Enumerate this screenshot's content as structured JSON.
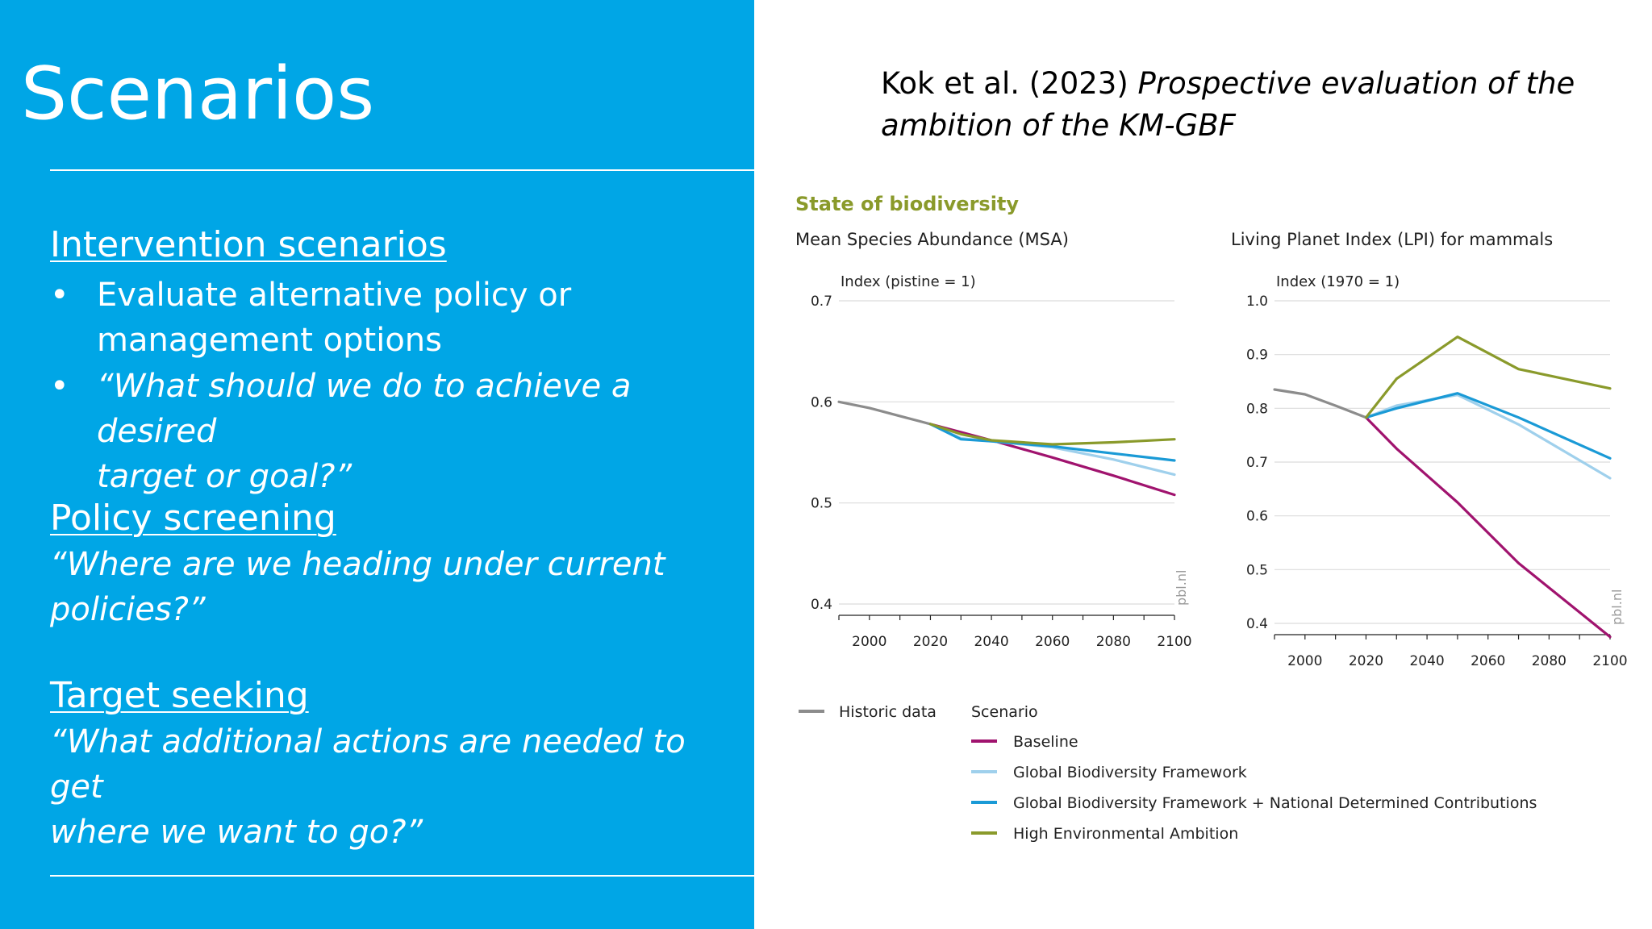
{
  "slide": {
    "title": "Scenarios",
    "sections": [
      {
        "heading": "Intervention scenarios ",
        "bullets": [
          {
            "symbol": "•",
            "lines": [
              "Evaluate alternative policy or",
              "management options"
            ]
          },
          {
            "symbol": "•",
            "lines": [
              "“What should we do to achieve a desired",
              "target or goal?”"
            ]
          }
        ]
      },
      {
        "heading": "Policy screening",
        "lines": [
          "“Where are we heading under current",
          "policies?”"
        ]
      },
      {
        "heading": "Target seeking",
        "lines": [
          "“What additional actions are needed to get",
          "where we want to go?”"
        ]
      }
    ],
    "reference": {
      "authors": "Kok et al. (2023) ",
      "title_part1": "Prospective evaluation of the",
      "title_part2": "ambition of the KM-GBF"
    }
  },
  "colors": {
    "panel": "#00a6e6",
    "historic": "#8c8c8c",
    "baseline": "#a0136e",
    "gbf": "#9fd0ec",
    "gbf_ndc": "#1a9ad6",
    "hea": "#8a9a2b",
    "heading": "#8a9a2b"
  },
  "figure": {
    "heading": "State of biodiversity",
    "watermark": "pbl.nl",
    "legend": {
      "historic": "Historic data",
      "scenario_title": "Scenario",
      "items": [
        {
          "key": "baseline",
          "label": "Baseline"
        },
        {
          "key": "gbf",
          "label": "Global Biodiversity Framework"
        },
        {
          "key": "gbf_ndc",
          "label": "Global Biodiversity Framework + National Determined Contributions"
        },
        {
          "key": "hea",
          "label": "High Environmental Ambition"
        }
      ]
    }
  },
  "chart_data": [
    {
      "type": "line",
      "title": "Mean Species Abundance (MSA)",
      "ylabel": "Index (pistine = 1)",
      "xlim": [
        1990,
        2100
      ],
      "ylim": [
        0.4,
        0.7
      ],
      "xticks": [
        2000,
        2020,
        2040,
        2060,
        2080,
        2100
      ],
      "yticks": [
        {
          "value": 0.4,
          "label": "0.4"
        },
        {
          "value": 0.5,
          "label": "0.5"
        },
        {
          "value": 0.6,
          "label": "0.6"
        },
        {
          "value": 0.7,
          "label": "0.7"
        }
      ],
      "grid": true,
      "series": [
        {
          "key": "historic",
          "name": "Historic data",
          "points": [
            [
              1990,
              0.6
            ],
            [
              2000,
              0.594
            ],
            [
              2010,
              0.586
            ],
            [
              2020,
              0.578
            ]
          ]
        },
        {
          "key": "baseline",
          "name": "Baseline",
          "points": [
            [
              2020,
              0.578
            ],
            [
              2030,
              0.57
            ],
            [
              2040,
              0.562
            ],
            [
              2060,
              0.545
            ],
            [
              2080,
              0.527
            ],
            [
              2100,
              0.508
            ]
          ]
        },
        {
          "key": "gbf",
          "name": "Global Biodiversity Framework",
          "points": [
            [
              2020,
              0.578
            ],
            [
              2030,
              0.564
            ],
            [
              2040,
              0.561
            ],
            [
              2060,
              0.555
            ],
            [
              2080,
              0.543
            ],
            [
              2100,
              0.528
            ]
          ]
        },
        {
          "key": "gbf_ndc",
          "name": "Global Biodiversity Framework + National Determined Contributions",
          "points": [
            [
              2020,
              0.578
            ],
            [
              2030,
              0.563
            ],
            [
              2040,
              0.561
            ],
            [
              2060,
              0.556
            ],
            [
              2080,
              0.549
            ],
            [
              2100,
              0.542
            ]
          ]
        },
        {
          "key": "hea",
          "name": "High Environmental Ambition",
          "points": [
            [
              2020,
              0.578
            ],
            [
              2030,
              0.568
            ],
            [
              2040,
              0.562
            ],
            [
              2060,
              0.558
            ],
            [
              2080,
              0.56
            ],
            [
              2100,
              0.563
            ]
          ]
        }
      ]
    },
    {
      "type": "line",
      "title": "Living Planet Index (LPI) for mammals",
      "ylabel": "Index (1970 = 1)",
      "xlim": [
        1990,
        2100
      ],
      "ylim": [
        0.4,
        1.0
      ],
      "xticks": [
        2000,
        2020,
        2040,
        2060,
        2080,
        2100
      ],
      "yticks": [
        {
          "value": 0.4,
          "label": "0.4"
        },
        {
          "value": 0.5,
          "label": "0.5"
        },
        {
          "value": 0.6,
          "label": "0.6"
        },
        {
          "value": 0.7,
          "label": "0.7"
        },
        {
          "value": 0.8,
          "label": "0.8"
        },
        {
          "value": 0.9,
          "label": "0.9"
        },
        {
          "value": 1.0,
          "label": "1.0"
        }
      ],
      "grid": true,
      "series": [
        {
          "key": "historic",
          "name": "Historic data",
          "points": [
            [
              1990,
              0.835
            ],
            [
              2000,
              0.826
            ],
            [
              2010,
              0.805
            ],
            [
              2020,
              0.783
            ]
          ]
        },
        {
          "key": "baseline",
          "name": "Baseline",
          "points": [
            [
              2020,
              0.783
            ],
            [
              2030,
              0.725
            ],
            [
              2050,
              0.625
            ],
            [
              2070,
              0.512
            ],
            [
              2100,
              0.375
            ]
          ]
        },
        {
          "key": "gbf",
          "name": "Global Biodiversity Framework",
          "points": [
            [
              2020,
              0.783
            ],
            [
              2030,
              0.805
            ],
            [
              2050,
              0.825
            ],
            [
              2070,
              0.77
            ],
            [
              2100,
              0.67
            ]
          ]
        },
        {
          "key": "gbf_ndc",
          "name": "Global Biodiversity Framework + National Determined Contributions",
          "points": [
            [
              2020,
              0.783
            ],
            [
              2030,
              0.8
            ],
            [
              2050,
              0.828
            ],
            [
              2070,
              0.783
            ],
            [
              2100,
              0.707
            ]
          ]
        },
        {
          "key": "hea",
          "name": "High Environmental Ambition",
          "points": [
            [
              2020,
              0.783
            ],
            [
              2030,
              0.855
            ],
            [
              2050,
              0.933
            ],
            [
              2070,
              0.873
            ],
            [
              2100,
              0.837
            ]
          ]
        }
      ]
    }
  ]
}
